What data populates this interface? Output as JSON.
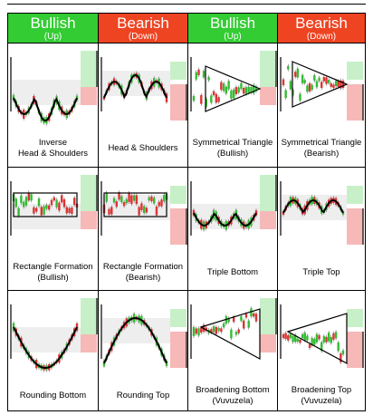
{
  "headers": [
    {
      "title": "Bullish",
      "sub": "(Up)",
      "color": "#33cc33"
    },
    {
      "title": "Bearish",
      "sub": "(Down)",
      "color": "#ee4422"
    },
    {
      "title": "Bullish",
      "sub": "(Up)",
      "color": "#33cc33"
    },
    {
      "title": "Bearish",
      "sub": "(Down)",
      "color": "#ee4422"
    }
  ],
  "patterns": [
    {
      "name": "inverse-head-shoulders",
      "label_lines": [
        "Inverse",
        "Head & Shoulders"
      ]
    },
    {
      "name": "head-shoulders",
      "label_lines": [
        "Head & Shoulders"
      ]
    },
    {
      "name": "symmetrical-triangle-bullish",
      "label_lines": [
        "Symmetrical Triangle",
        "(Bullish)"
      ]
    },
    {
      "name": "symmetrical-triangle-bearish",
      "label_lines": [
        "Symmetrical Triangle",
        "(Bearish)"
      ]
    },
    {
      "name": "rectangle-formation-bullish",
      "label_lines": [
        "Rectangle Formation",
        "(Bullish)"
      ]
    },
    {
      "name": "rectangle-formation-bearish",
      "label_lines": [
        "Rectangle Formation",
        "(Bearish)"
      ]
    },
    {
      "name": "triple-bottom",
      "label_lines": [
        "Triple Bottom"
      ]
    },
    {
      "name": "triple-top",
      "label_lines": [
        "Triple Top"
      ]
    },
    {
      "name": "rounding-bottom",
      "label_lines": [
        "Rounding Bottom"
      ]
    },
    {
      "name": "rounding-top",
      "label_lines": [
        "Rounding Top"
      ]
    },
    {
      "name": "broadening-bottom",
      "label_lines": [
        "Broadening Bottom",
        "(Vuvuzela)"
      ]
    },
    {
      "name": "broadening-top",
      "label_lines": [
        "Broadening Top",
        "(Vuvuzela)"
      ]
    }
  ],
  "colors": {
    "bull_zone": "#c8f0c8",
    "bear_zone": "#f7b8b8",
    "grey_zone": "#eeeeee",
    "candle_up": "#33bb33",
    "candle_down": "#dd3333",
    "outline": "#000000"
  }
}
